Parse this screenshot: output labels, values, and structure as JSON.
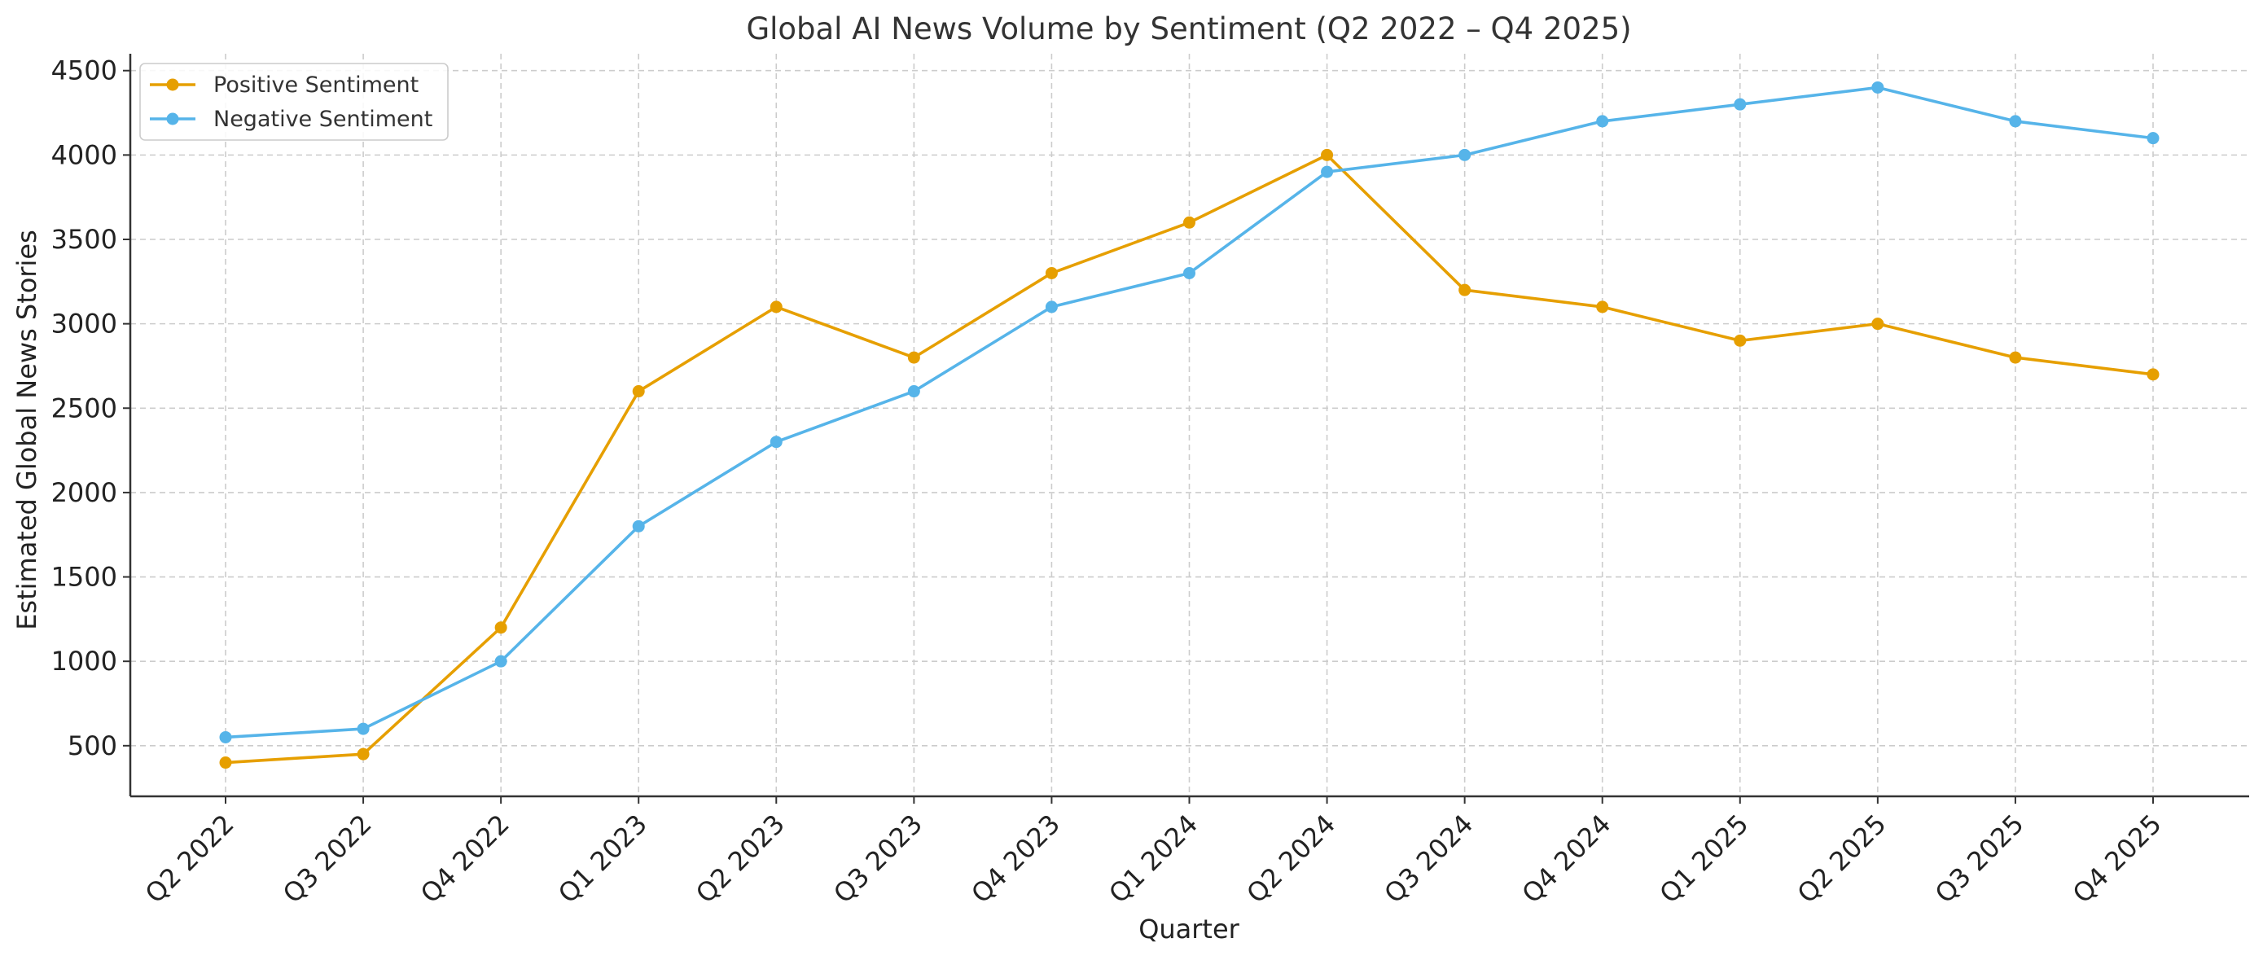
{
  "chart_data": {
    "type": "line",
    "title": "Global AI News Volume by Sentiment (Q2 2022 – Q4 2025)",
    "xlabel": "Quarter",
    "ylabel": "Estimated Global News Stories",
    "categories": [
      "Q2 2022",
      "Q3 2022",
      "Q4 2022",
      "Q1 2023",
      "Q2 2023",
      "Q3 2023",
      "Q4 2023",
      "Q1 2024",
      "Q2 2024",
      "Q3 2024",
      "Q4 2024",
      "Q1 2025",
      "Q2 2025",
      "Q3 2025",
      "Q4 2025"
    ],
    "ylim": [
      200,
      4600
    ],
    "yticks": [
      500,
      1000,
      1500,
      2000,
      2500,
      3000,
      3500,
      4000,
      4500
    ],
    "grid": true,
    "legend_position": "top-left",
    "series": [
      {
        "name": "Positive Sentiment",
        "color": "#E69F00",
        "values": [
          400,
          450,
          1200,
          2600,
          3100,
          2800,
          3300,
          3600,
          4000,
          3200,
          3100,
          2900,
          3000,
          2800,
          2700
        ]
      },
      {
        "name": "Negative Sentiment",
        "color": "#56B4E9",
        "values": [
          550,
          600,
          1000,
          1800,
          2300,
          2600,
          3100,
          3300,
          3900,
          4000,
          4200,
          4300,
          4400,
          4200,
          4100
        ]
      }
    ]
  }
}
